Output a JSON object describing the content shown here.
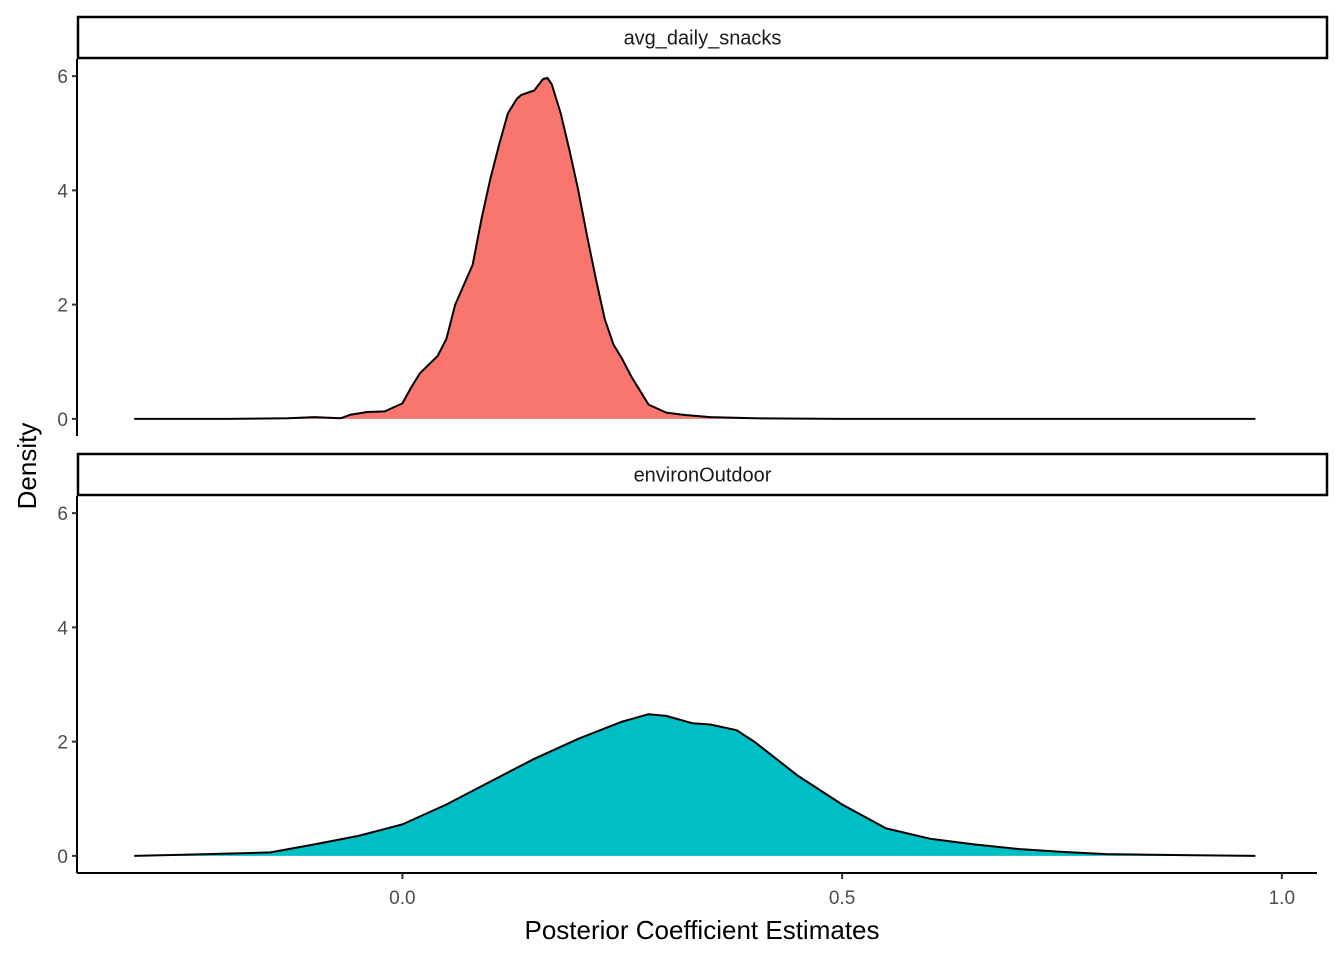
{
  "chart_data": {
    "type": "area",
    "xlabel": "Posterior Coefficient Estimates",
    "ylabel": "Density",
    "xlim": [
      -0.37,
      1.04
    ],
    "ylim": [
      -0.3,
      6.3
    ],
    "x_ticks": [
      0.0,
      0.5,
      1.0
    ],
    "x_tick_labels": [
      "0.0",
      "0.5",
      "1.0"
    ],
    "y_ticks": [
      0,
      2,
      4,
      6
    ],
    "y_tick_labels": [
      "0",
      "2",
      "4",
      "6"
    ],
    "grid": false,
    "facets": [
      {
        "label": "avg_daily_snacks",
        "fill": "#F8766D",
        "x": [
          -0.305,
          -0.2,
          -0.13,
          -0.1,
          -0.07,
          -0.06,
          -0.04,
          -0.02,
          0.0,
          0.01,
          0.02,
          0.04,
          0.05,
          0.06,
          0.08,
          0.09,
          0.1,
          0.11,
          0.12,
          0.13,
          0.135,
          0.15,
          0.16,
          0.165,
          0.17,
          0.18,
          0.19,
          0.2,
          0.21,
          0.22,
          0.23,
          0.24,
          0.25,
          0.26,
          0.27,
          0.28,
          0.3,
          0.32,
          0.35,
          0.4,
          0.5,
          0.7,
          0.97
        ],
        "y": [
          0.0,
          0.0,
          0.01,
          0.03,
          0.01,
          0.07,
          0.12,
          0.13,
          0.27,
          0.55,
          0.8,
          1.1,
          1.4,
          2.0,
          2.7,
          3.5,
          4.2,
          4.8,
          5.35,
          5.6,
          5.67,
          5.75,
          5.95,
          5.97,
          5.85,
          5.35,
          4.7,
          4.0,
          3.2,
          2.45,
          1.75,
          1.3,
          1.05,
          0.75,
          0.5,
          0.25,
          0.11,
          0.07,
          0.03,
          0.01,
          0.0,
          0.0,
          0.0
        ]
      },
      {
        "label": "environOutdoor",
        "fill": "#00BFC4",
        "x": [
          -0.305,
          -0.25,
          -0.2,
          -0.15,
          -0.1,
          -0.05,
          0.0,
          0.05,
          0.1,
          0.15,
          0.2,
          0.25,
          0.28,
          0.3,
          0.33,
          0.35,
          0.38,
          0.4,
          0.45,
          0.5,
          0.55,
          0.6,
          0.65,
          0.7,
          0.75,
          0.8,
          0.9,
          0.97
        ],
        "y": [
          0.0,
          0.02,
          0.04,
          0.06,
          0.2,
          0.35,
          0.55,
          0.9,
          1.3,
          1.7,
          2.05,
          2.35,
          2.48,
          2.45,
          2.32,
          2.3,
          2.2,
          2.0,
          1.4,
          0.9,
          0.48,
          0.3,
          0.2,
          0.12,
          0.07,
          0.03,
          0.01,
          0.0
        ]
      }
    ]
  }
}
